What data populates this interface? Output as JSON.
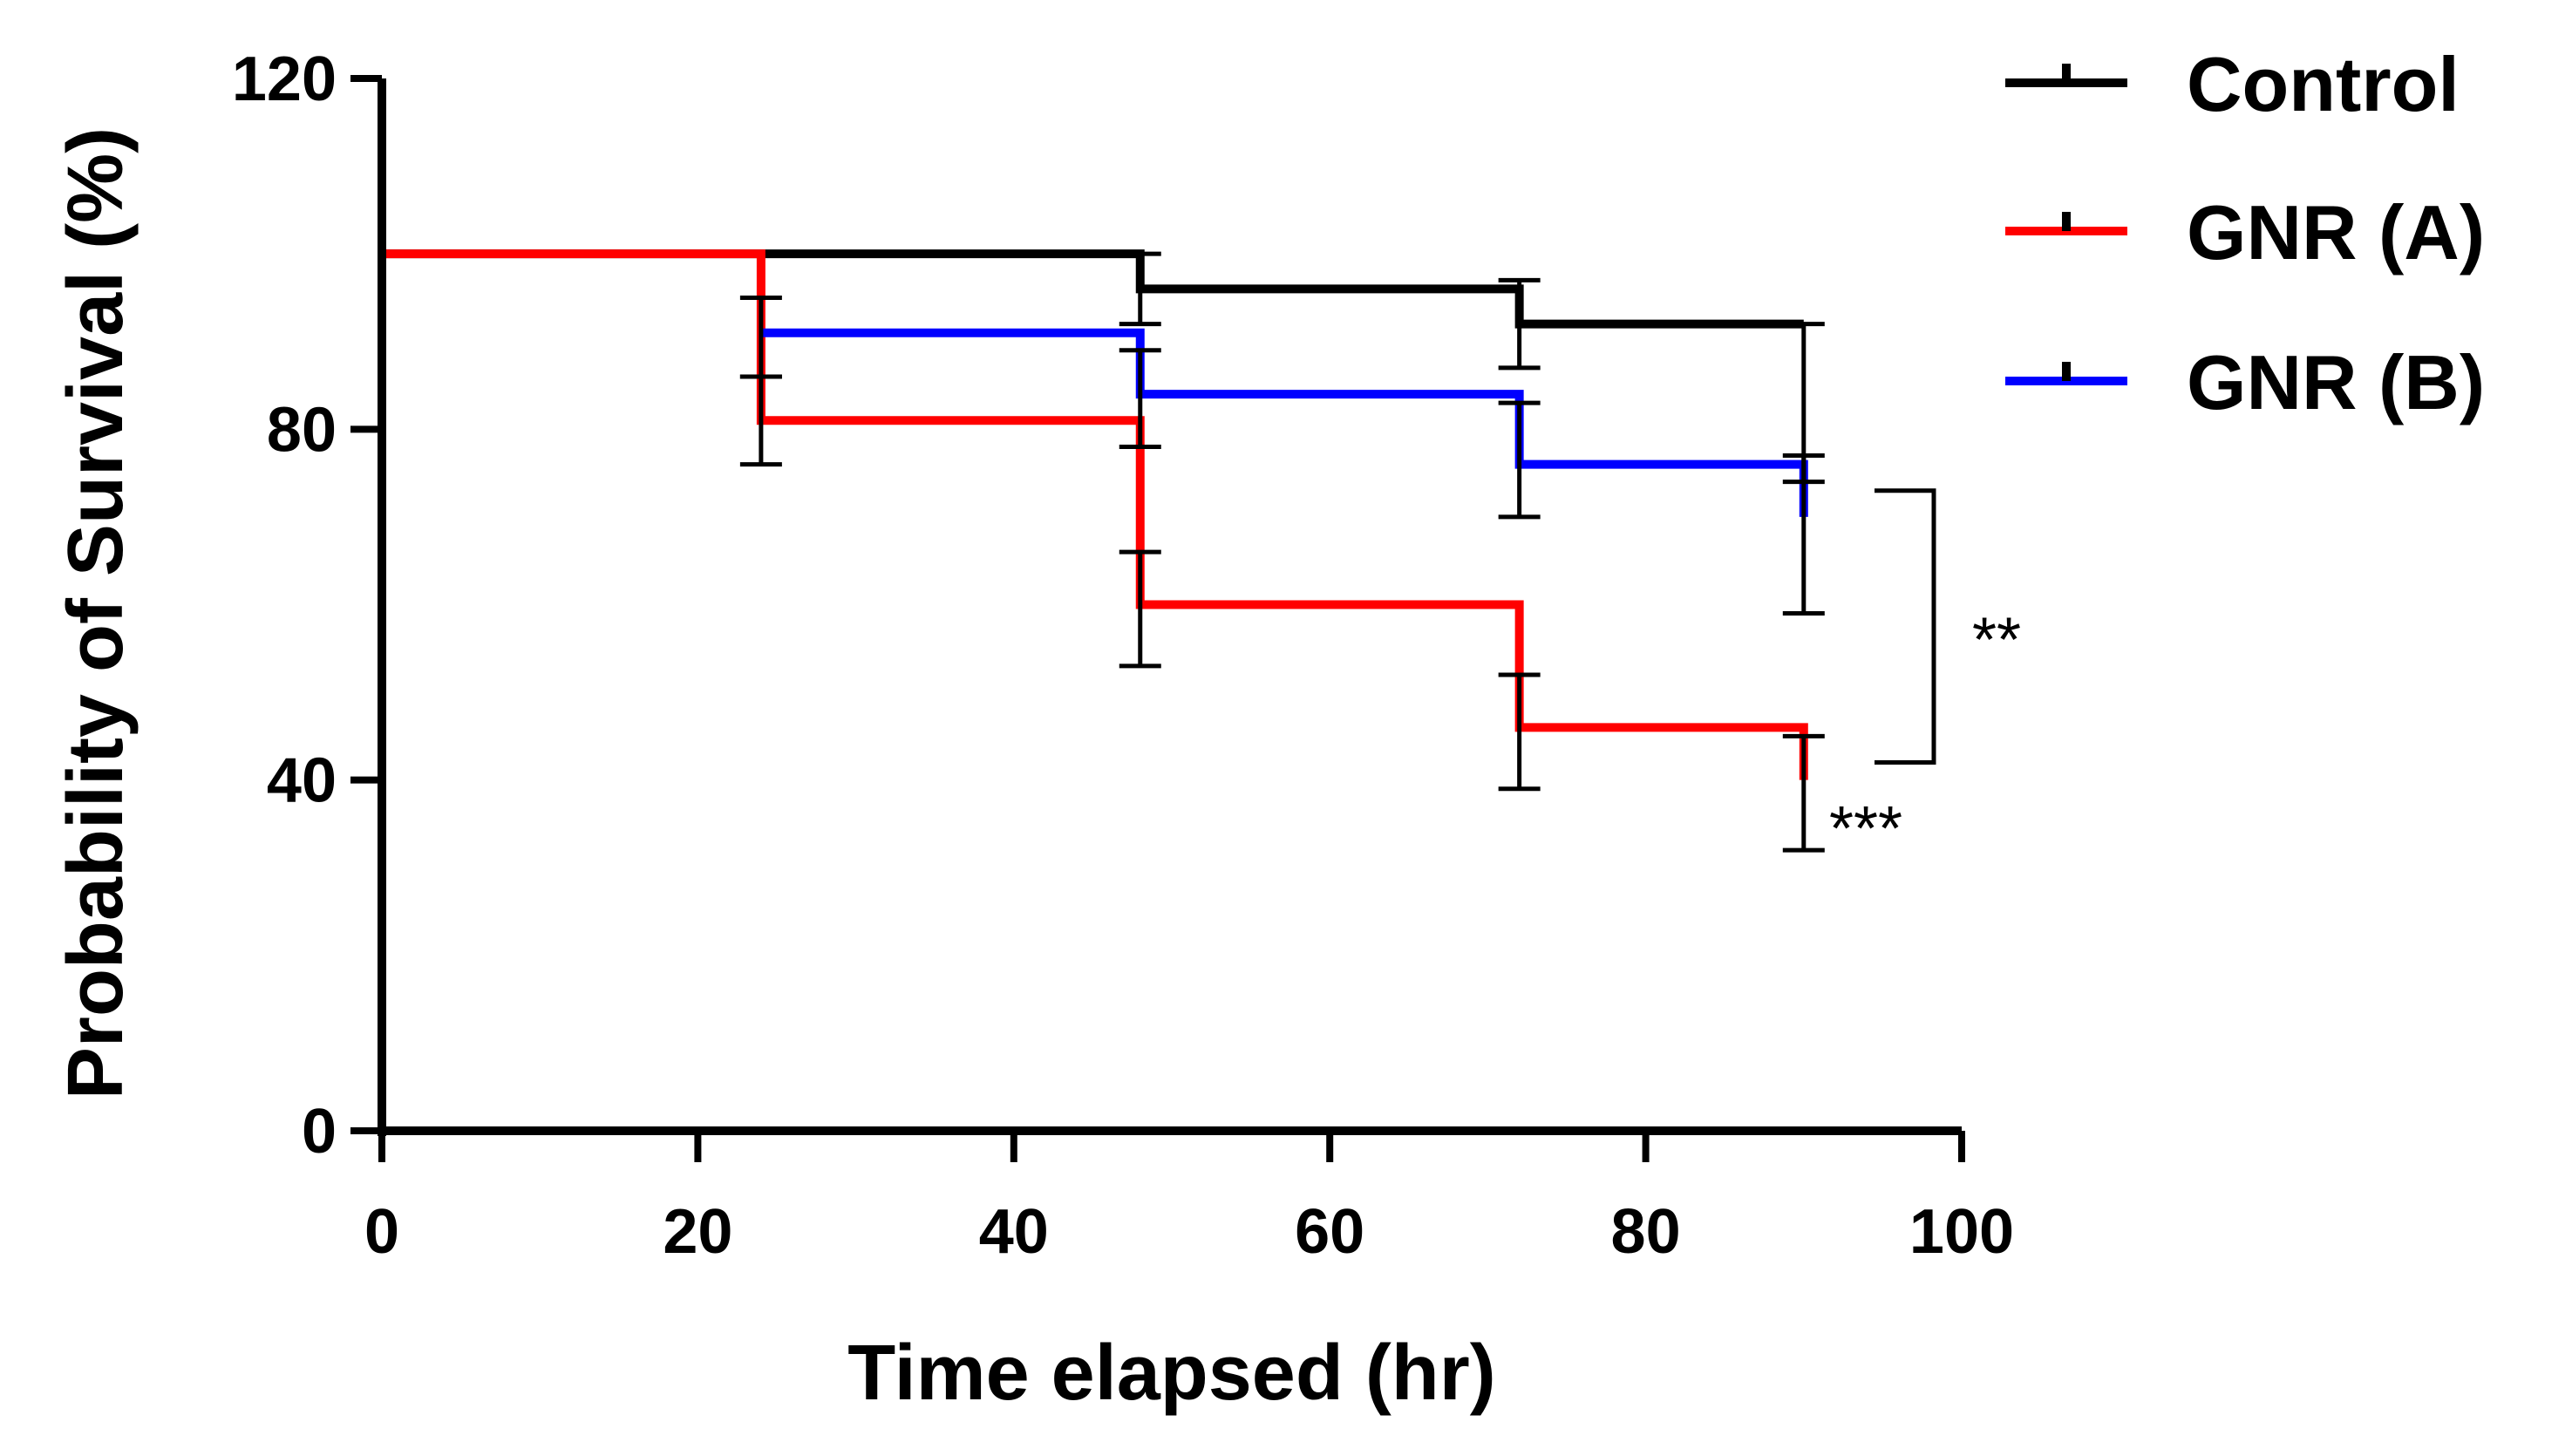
{
  "chart_data": {
    "type": "line",
    "subtype": "kaplan-meier-step",
    "title": "",
    "xlabel": "Time elapsed (hr)",
    "ylabel": "Probability of Survival (%)",
    "xlim": [
      0,
      100
    ],
    "ylim": [
      0,
      120
    ],
    "xticks": [
      0,
      20,
      40,
      60,
      80,
      100
    ],
    "yticks": [
      0,
      40,
      80,
      120
    ],
    "xtick_labels": [
      "0",
      "20",
      "40",
      "60",
      "80",
      "100"
    ],
    "ytick_labels": [
      "0",
      "40",
      "80",
      "120"
    ],
    "grid": false,
    "legend_position": "top-right",
    "series": [
      {
        "name": "Control",
        "color": "#000000",
        "steps": [
          [
            0,
            100
          ],
          [
            48,
            96
          ],
          [
            72,
            92
          ],
          [
            90,
            92
          ]
        ],
        "error_bars": [
          {
            "x": 48,
            "y": 96,
            "low": 92,
            "high": 100
          },
          {
            "x": 72,
            "y": 92,
            "low": 87,
            "high": 97
          },
          {
            "x": 90,
            "y": 92,
            "low": 74,
            "high": 92
          }
        ]
      },
      {
        "name": "GNR (A)",
        "color": "#ff0000",
        "steps": [
          [
            0,
            100
          ],
          [
            24,
            81
          ],
          [
            48,
            60
          ],
          [
            72,
            46
          ],
          [
            90,
            40
          ]
        ],
        "error_bars": [
          {
            "x": 24,
            "y": 81,
            "low": 76,
            "high": 86
          },
          {
            "x": 48,
            "y": 60,
            "low": 53,
            "high": 66
          },
          {
            "x": 72,
            "y": 46,
            "low": 39,
            "high": 52
          },
          {
            "x": 90,
            "y": 40,
            "low": 32,
            "high": 45
          }
        ]
      },
      {
        "name": "GNR (B)",
        "color": "#0000ff",
        "steps": [
          [
            24,
            91
          ],
          [
            48,
            84
          ],
          [
            72,
            76
          ],
          [
            90,
            70
          ]
        ],
        "error_bars": [
          {
            "x": 24,
            "y": 91,
            "low": 86,
            "high": 95
          },
          {
            "x": 48,
            "y": 84,
            "low": 78,
            "high": 89
          },
          {
            "x": 72,
            "y": 76,
            "low": 70,
            "high": 83
          },
          {
            "x": 90,
            "y": 70,
            "low": 59,
            "high": 77
          }
        ]
      }
    ],
    "annotations": [
      {
        "name": "bracket-significance",
        "text": "**",
        "x": 90,
        "y_from": 73,
        "y_to": 42
      },
      {
        "name": "gnr-a-significance",
        "text": "***",
        "x": 90,
        "y": 36
      }
    ]
  }
}
